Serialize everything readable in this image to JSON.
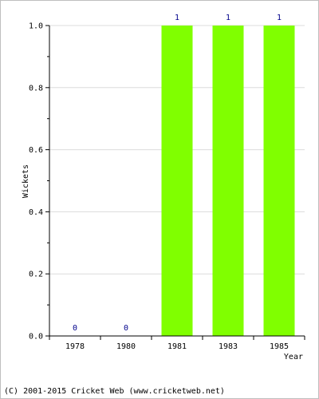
{
  "chart_data": {
    "type": "bar",
    "title": "",
    "xlabel": "Year",
    "ylabel": "Wickets",
    "categories": [
      "1978",
      "1980",
      "1981",
      "1983",
      "1985"
    ],
    "values": [
      0,
      0,
      1,
      1,
      1
    ],
    "data_labels": [
      "0",
      "0",
      "1",
      "1",
      "1"
    ],
    "ylim": [
      0,
      1.0
    ],
    "yticks": [
      "0.0",
      "0.2",
      "0.4",
      "0.6",
      "0.8",
      "1.0"
    ],
    "grid": true,
    "legend": "none",
    "colors": {
      "bar": "#80ff00",
      "data_label": "#00008b",
      "grid": "#dcdcdc",
      "axis": "#000000"
    }
  },
  "footer": {
    "copyright": "(C) 2001-2015 Cricket Web (www.cricketweb.net)"
  }
}
